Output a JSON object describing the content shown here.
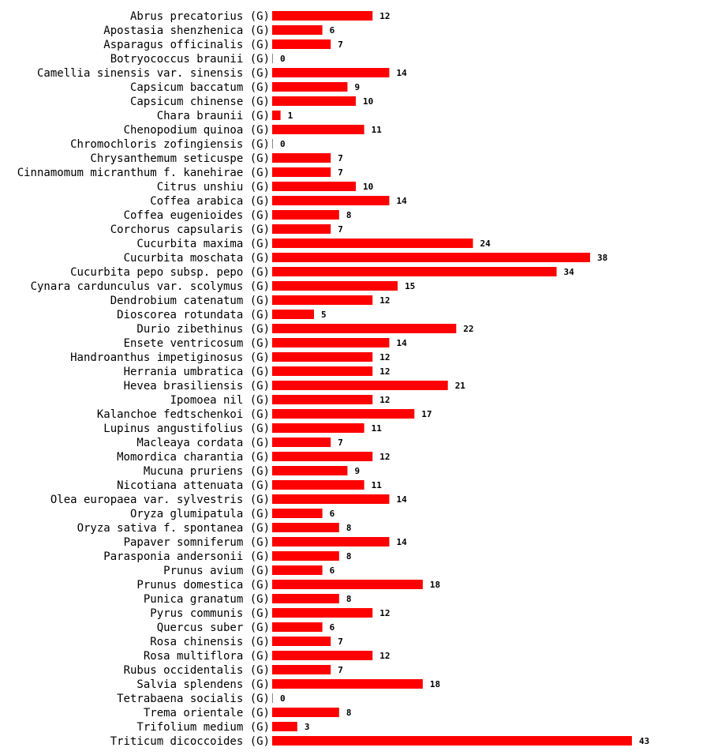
{
  "chart_data": {
    "type": "bar",
    "orientation": "horizontal",
    "title": "",
    "xlabel": "",
    "ylabel": "",
    "bar_color": "#ff0000",
    "xlim": [
      0,
      43
    ],
    "categories": [
      "Abrus precatorius (G)",
      "Apostasia shenzhenica (G)",
      "Asparagus officinalis (G)",
      "Botryococcus braunii (G)",
      "Camellia sinensis var. sinensis (G)",
      "Capsicum baccatum (G)",
      "Capsicum chinense (G)",
      "Chara braunii (G)",
      "Chenopodium quinoa (G)",
      "Chromochloris zofingiensis (G)",
      "Chrysanthemum seticuspe (G)",
      "Cinnamomum micranthum f. kanehirae (G)",
      "Citrus unshiu (G)",
      "Coffea arabica (G)",
      "Coffea eugenioides (G)",
      "Corchorus capsularis (G)",
      "Cucurbita maxima (G)",
      "Cucurbita moschata (G)",
      "Cucurbita pepo subsp. pepo (G)",
      "Cynara cardunculus var. scolymus (G)",
      "Dendrobium catenatum (G)",
      "Dioscorea rotundata (G)",
      "Durio zibethinus (G)",
      "Ensete ventricosum (G)",
      "Handroanthus impetiginosus (G)",
      "Herrania umbratica (G)",
      "Hevea brasiliensis (G)",
      "Ipomoea nil (G)",
      "Kalanchoe fedtschenkoi (G)",
      "Lupinus angustifolius (G)",
      "Macleaya cordata (G)",
      "Momordica charantia (G)",
      "Mucuna pruriens (G)",
      "Nicotiana attenuata (G)",
      "Olea europaea var. sylvestris (G)",
      "Oryza glumipatula (G)",
      "Oryza sativa f. spontanea (G)",
      "Papaver somniferum (G)",
      "Parasponia andersonii (G)",
      "Prunus avium (G)",
      "Prunus domestica (G)",
      "Punica granatum (G)",
      "Pyrus communis (G)",
      "Quercus suber (G)",
      "Rosa chinensis (G)",
      "Rosa multiflora (G)",
      "Rubus occidentalis (G)",
      "Salvia splendens (G)",
      "Tetrabaena socialis (G)",
      "Trema orientale (G)",
      "Trifolium medium (G)",
      "Triticum dicoccoides (G)"
    ],
    "values": [
      12,
      6,
      7,
      0,
      14,
      9,
      10,
      1,
      11,
      0,
      7,
      7,
      10,
      14,
      8,
      7,
      24,
      38,
      34,
      15,
      12,
      5,
      22,
      14,
      12,
      12,
      21,
      12,
      17,
      11,
      7,
      12,
      9,
      11,
      14,
      6,
      8,
      14,
      8,
      6,
      18,
      8,
      12,
      6,
      7,
      12,
      7,
      18,
      0,
      8,
      3,
      43
    ]
  }
}
